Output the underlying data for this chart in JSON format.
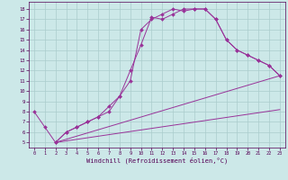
{
  "xlabel": "Windchill (Refroidissement éolien,°C)",
  "bg_color": "#cce8e8",
  "line_color": "#993399",
  "grid_color": "#aacccc",
  "x_ticks": [
    0,
    1,
    2,
    3,
    4,
    5,
    6,
    7,
    8,
    9,
    10,
    11,
    12,
    13,
    14,
    15,
    16,
    17,
    18,
    19,
    20,
    21,
    22,
    23
  ],
  "y_ticks": [
    5,
    6,
    7,
    8,
    9,
    10,
    11,
    12,
    13,
    14,
    15,
    16,
    17,
    18
  ],
  "xlim": [
    -0.5,
    23.5
  ],
  "ylim": [
    4.5,
    18.7
  ],
  "line1_x": [
    0,
    1,
    2,
    3,
    4,
    5,
    6,
    7,
    8,
    9,
    10,
    11,
    12,
    13,
    14,
    15,
    16,
    17,
    18,
    19,
    20,
    21,
    22,
    23
  ],
  "line1_y": [
    8.0,
    6.5,
    5.0,
    6.0,
    6.5,
    7.0,
    7.5,
    8.0,
    9.5,
    11.0,
    16.0,
    17.0,
    17.5,
    18.0,
    17.8,
    18.0,
    18.0,
    17.0,
    15.0,
    14.0,
    13.5,
    13.0,
    12.5,
    11.5
  ],
  "line2_x": [
    2,
    3,
    4,
    5,
    6,
    7,
    8,
    9,
    10,
    11,
    12,
    13,
    14,
    15,
    16,
    17,
    18,
    19,
    20,
    21,
    22,
    23
  ],
  "line2_y": [
    5.0,
    6.0,
    6.5,
    7.0,
    7.5,
    8.5,
    9.5,
    12.0,
    14.5,
    17.2,
    17.0,
    17.5,
    18.0,
    18.0,
    18.0,
    17.0,
    15.0,
    14.0,
    13.5,
    13.0,
    12.5,
    11.5
  ],
  "line3_x": [
    2,
    23
  ],
  "line3_y": [
    5.0,
    11.5
  ],
  "line4_x": [
    2,
    23
  ],
  "line4_y": [
    5.0,
    8.2
  ]
}
